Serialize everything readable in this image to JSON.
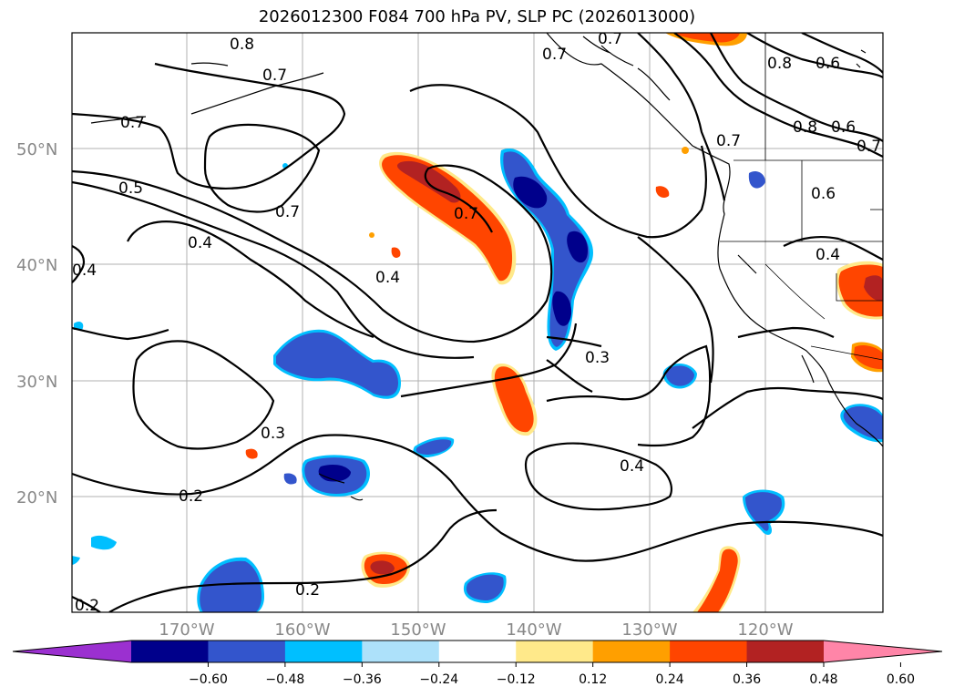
{
  "title": "2026012300 F084 700 hPa PV, SLP PC (2026013000)",
  "map": {
    "lat_labels": [
      "50°N",
      "40°N",
      "30°N",
      "20°N"
    ],
    "lon_labels": [
      "170°W",
      "160°W",
      "150°W",
      "140°W",
      "130°W",
      "120°W"
    ],
    "contour_labels": [
      "0.8",
      "0.7",
      "0.7",
      "0.7",
      "0.7",
      "0.8",
      "0.6",
      "0.8",
      "0.6",
      "0.7",
      "0.7",
      "0.5",
      "0.7",
      "0.7",
      "0.6",
      "0.4",
      "0.4",
      "0.4",
      "0.4",
      "0.3",
      "0.3",
      "0.4",
      "0.2",
      "0.2",
      "0.2"
    ]
  },
  "colorbar": {
    "ticks": [
      "−0.60",
      "−0.48",
      "−0.36",
      "−0.24",
      "−0.12",
      "0.12",
      "0.24",
      "0.36",
      "0.48",
      "0.60"
    ],
    "colors": [
      "#9b30d0",
      "#00008b",
      "#3355cc",
      "#00bfff",
      "#ade1fa",
      "#ffffff",
      "#ffe98a",
      "#ff9f00",
      "#ff4500",
      "#b22222",
      "#ff85a8"
    ]
  }
}
